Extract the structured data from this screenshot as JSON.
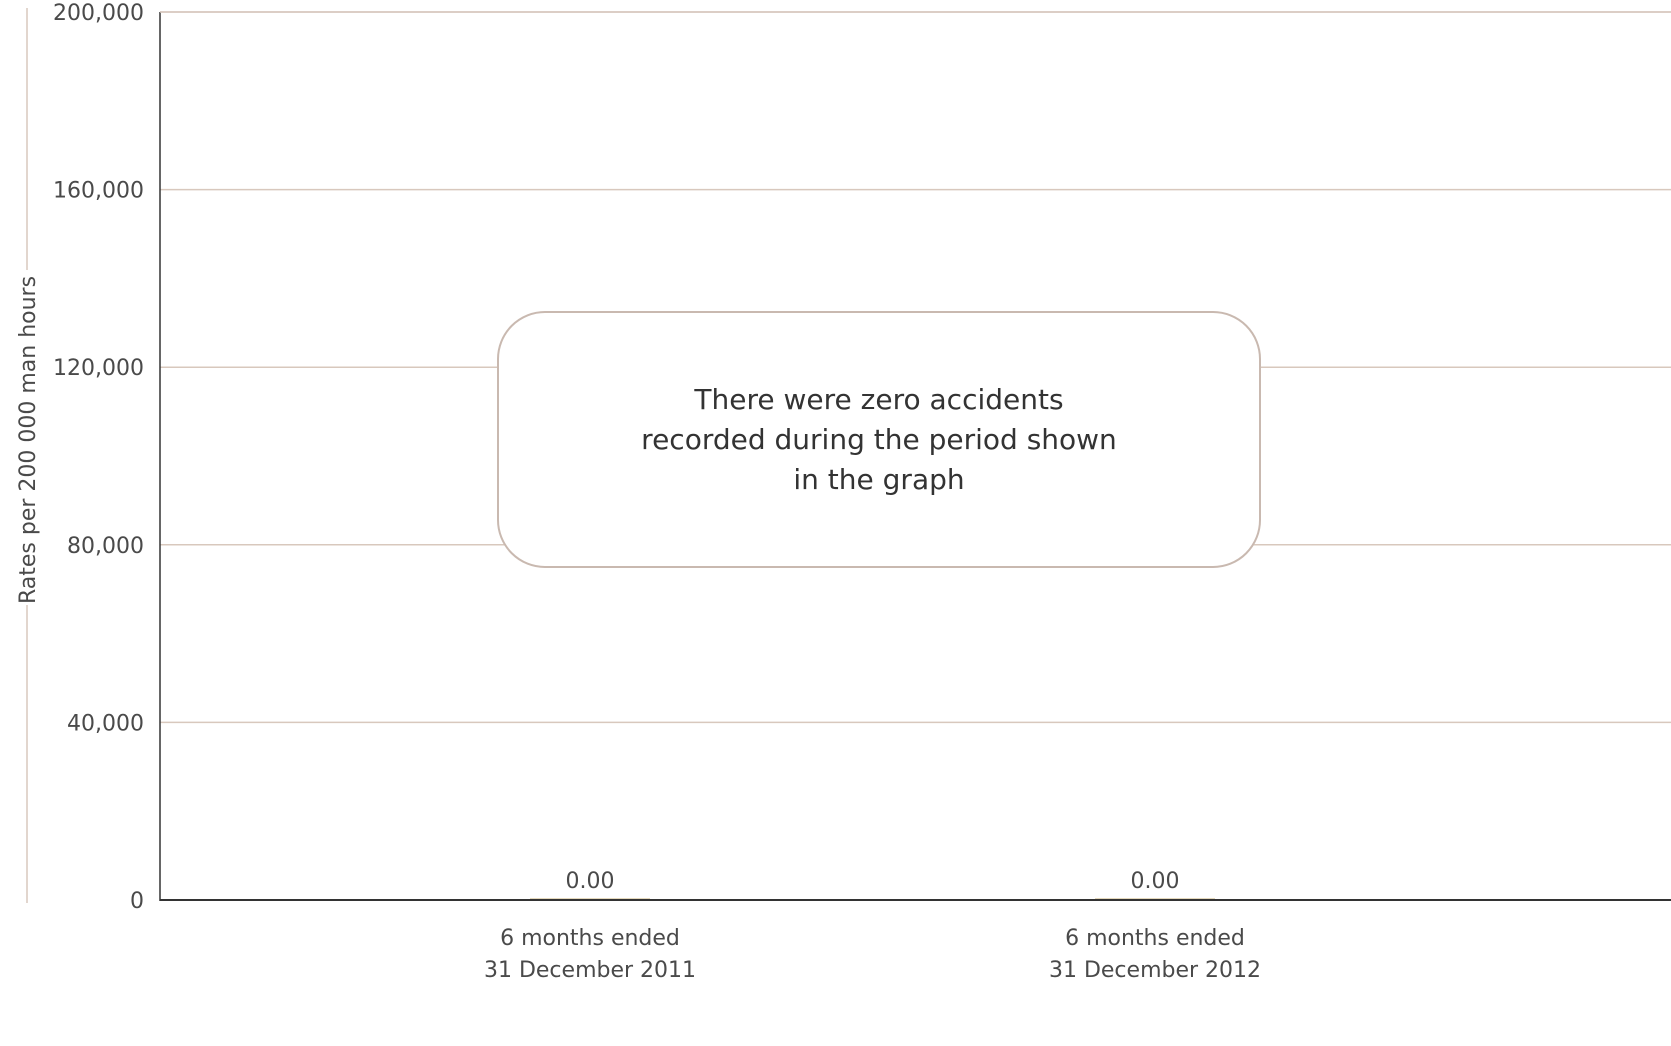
{
  "chart_data": {
    "type": "bar",
    "ylabel": "Rates per 200 000 man hours",
    "xlabel": "",
    "ylim": [
      0,
      200000
    ],
    "yticks": [
      0,
      40000,
      80000,
      120000,
      160000,
      200000
    ],
    "ytick_labels": [
      "0",
      "40,000",
      "80,000",
      "120,000",
      "160,000",
      "200,000"
    ],
    "categories": [
      [
        "6 months ended",
        "31 December 2011"
      ],
      [
        "6 months ended",
        "31 December 2012"
      ]
    ],
    "values": [
      0.0,
      0.0
    ],
    "value_labels": [
      "0.00",
      "0.00"
    ],
    "annotation": "There were zero accidents\nrecorded during the period shown\nin the graph",
    "grid": true,
    "colors": {
      "grid": "#d8c8bd",
      "axis": "#333333",
      "bar": "#c8b07a",
      "box_border": "#c9b9b0"
    }
  }
}
